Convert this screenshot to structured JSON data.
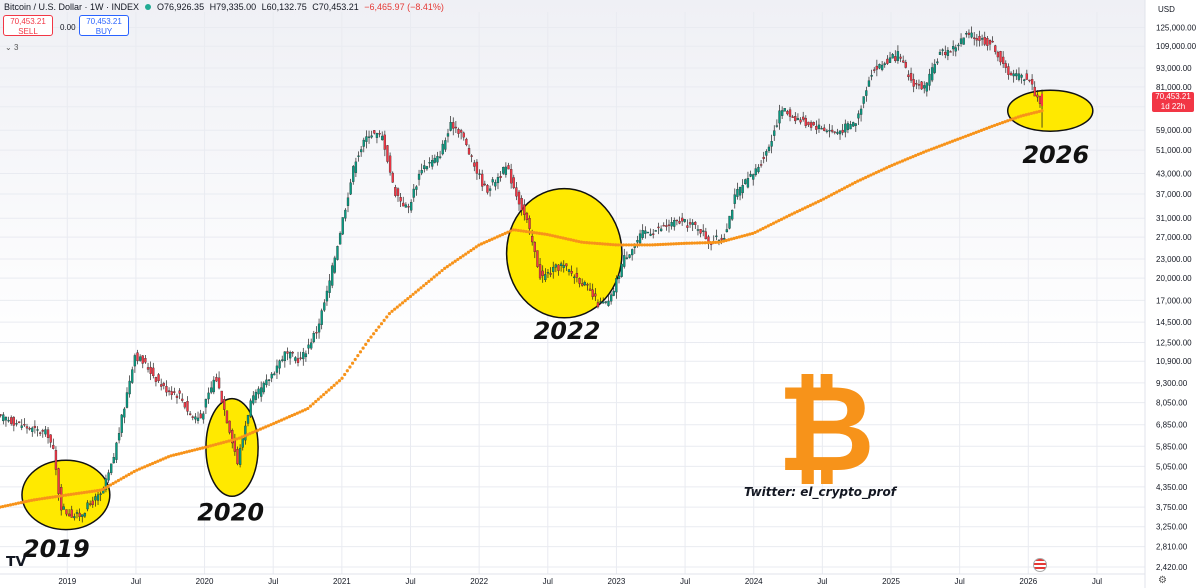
{
  "header": {
    "title": "Bitcoin / U.S. Dollar · 1W · INDEX",
    "open": "O76,926.35",
    "high": "H79,335.00",
    "low": "L60,132.75",
    "close": "C70,453.21",
    "change": "−6,465.97 (−8.41%)",
    "sell_price": "70,453.21",
    "sell_label": "SELL",
    "spread": "0.00",
    "buy_price": "70,453.21",
    "buy_label": "BUY",
    "indicator_count": "3"
  },
  "price_axis": {
    "currency": "USD",
    "current_price": "70,453.21",
    "countdown": "1d 22h"
  },
  "watermark": {
    "credit": "Twitter: el_crypto_prof",
    "logo_glyph": "₿",
    "logo_color": "#f7931a"
  },
  "colors": {
    "ma_line": "#f7931a",
    "highlight": "#ffe900",
    "up_candle": "#089981",
    "down_candle": "#f23645"
  },
  "chart_data": {
    "type": "candlestick",
    "scale": "log",
    "y_ticks": [
      125000,
      109000,
      93000,
      81000,
      70000,
      59000,
      51000,
      43000,
      37000,
      31000,
      27000,
      23000,
      20000,
      17000,
      14500,
      12500,
      10900,
      9300,
      8050,
      6850,
      5850,
      5050,
      4350,
      3750,
      3250,
      2810,
      2420
    ],
    "y_tick_labels": [
      "125,000.00",
      "109,000.00",
      "93,000.00",
      "81,000.00",
      "70,000.00",
      "59,000.00",
      "51,000.00",
      "43,000.00",
      "37,000.00",
      "31,000.00",
      "27,000.00",
      "23,000.00",
      "20,000.00",
      "17,000.00",
      "14,500.00",
      "12,500.00",
      "10,900.00",
      "9,300.00",
      "8,050.00",
      "6,850.00",
      "5,850.00",
      "5,050.00",
      "4,350.00",
      "3,750.00",
      "3,250.00",
      "2,810.00",
      "2,420.00"
    ],
    "ylim": [
      2300,
      140000
    ],
    "x_ticks": [
      {
        "t": 2018.5,
        "label": "Jul"
      },
      {
        "t": 2019.0,
        "label": "2019"
      },
      {
        "t": 2019.5,
        "label": "Jul"
      },
      {
        "t": 2020.0,
        "label": "2020"
      },
      {
        "t": 2020.5,
        "label": "Jul"
      },
      {
        "t": 2021.0,
        "label": "2021"
      },
      {
        "t": 2021.5,
        "label": "Jul"
      },
      {
        "t": 2022.0,
        "label": "2022"
      },
      {
        "t": 2022.5,
        "label": "Jul"
      },
      {
        "t": 2023.0,
        "label": "2023"
      },
      {
        "t": 2023.5,
        "label": "Jul"
      },
      {
        "t": 2024.0,
        "label": "2024"
      },
      {
        "t": 2024.5,
        "label": "Jul"
      },
      {
        "t": 2025.0,
        "label": "2025"
      },
      {
        "t": 2025.5,
        "label": "Jul"
      },
      {
        "t": 2026.0,
        "label": "2026"
      },
      {
        "t": 2026.5,
        "label": "Jul"
      }
    ],
    "xlim": [
      2018.51,
      2026.85
    ],
    "price_path": [
      [
        2018.55,
        7200
      ],
      [
        2018.75,
        6600
      ],
      [
        2018.86,
        6400
      ],
      [
        2018.9,
        5600
      ],
      [
        2018.95,
        3800
      ],
      [
        2019.0,
        3600
      ],
      [
        2019.08,
        3500
      ],
      [
        2019.18,
        3900
      ],
      [
        2019.25,
        4100
      ],
      [
        2019.33,
        5200
      ],
      [
        2019.42,
        8000
      ],
      [
        2019.49,
        11500
      ],
      [
        2019.58,
        10500
      ],
      [
        2019.7,
        9000
      ],
      [
        2019.82,
        8500
      ],
      [
        2019.9,
        7300
      ],
      [
        2019.97,
        7200
      ],
      [
        2020.08,
        9800
      ],
      [
        2020.2,
        6200
      ],
      [
        2020.24,
        5200
      ],
      [
        2020.33,
        8000
      ],
      [
        2020.45,
        9300
      ],
      [
        2020.58,
        11500
      ],
      [
        2020.7,
        11000
      ],
      [
        2020.82,
        13800
      ],
      [
        2020.9,
        18500
      ],
      [
        2021.0,
        30000
      ],
      [
        2021.1,
        48000
      ],
      [
        2021.2,
        58000
      ],
      [
        2021.3,
        56000
      ],
      [
        2021.38,
        38000
      ],
      [
        2021.48,
        33000
      ],
      [
        2021.58,
        45000
      ],
      [
        2021.7,
        48000
      ],
      [
        2021.8,
        62000
      ],
      [
        2021.87,
        58000
      ],
      [
        2021.95,
        47000
      ],
      [
        2022.05,
        38000
      ],
      [
        2022.2,
        45000
      ],
      [
        2022.35,
        30000
      ],
      [
        2022.45,
        20000
      ],
      [
        2022.6,
        22000
      ],
      [
        2022.75,
        19500
      ],
      [
        2022.87,
        16500
      ],
      [
        2022.95,
        16700
      ],
      [
        2023.05,
        23000
      ],
      [
        2023.2,
        28000
      ],
      [
        2023.3,
        28500
      ],
      [
        2023.45,
        30300
      ],
      [
        2023.6,
        29000
      ],
      [
        2023.68,
        26000
      ],
      [
        2023.78,
        27000
      ],
      [
        2023.87,
        37000
      ],
      [
        2024.0,
        43000
      ],
      [
        2024.1,
        51000
      ],
      [
        2024.2,
        69000
      ],
      [
        2024.35,
        63000
      ],
      [
        2024.5,
        60000
      ],
      [
        2024.6,
        58000
      ],
      [
        2024.75,
        63000
      ],
      [
        2024.85,
        90000
      ],
      [
        2024.96,
        97000
      ],
      [
        2025.05,
        102000
      ],
      [
        2025.15,
        84000
      ],
      [
        2025.25,
        80000
      ],
      [
        2025.35,
        103000
      ],
      [
        2025.45,
        107000
      ],
      [
        2025.55,
        118000
      ],
      [
        2025.65,
        115000
      ],
      [
        2025.75,
        110000
      ],
      [
        2025.82,
        93000
      ],
      [
        2025.9,
        88000
      ],
      [
        2026.0,
        87000
      ],
      [
        2026.05,
        77000
      ],
      [
        2026.1,
        70453
      ]
    ],
    "ma_path": [
      [
        2018.51,
        3750
      ],
      [
        2018.75,
        3950
      ],
      [
        2019.0,
        4100
      ],
      [
        2019.25,
        4250
      ],
      [
        2019.5,
        4900
      ],
      [
        2019.75,
        5450
      ],
      [
        2020.0,
        5800
      ],
      [
        2020.25,
        6200
      ],
      [
        2020.5,
        6900
      ],
      [
        2020.75,
        7700
      ],
      [
        2021.0,
        9600
      ],
      [
        2021.2,
        12800
      ],
      [
        2021.35,
        15500
      ],
      [
        2021.5,
        17500
      ],
      [
        2021.75,
        21500
      ],
      [
        2022.0,
        25500
      ],
      [
        2022.25,
        28500
      ],
      [
        2022.5,
        27500
      ],
      [
        2022.75,
        26000
      ],
      [
        2023.0,
        25500
      ],
      [
        2023.25,
        25500
      ],
      [
        2023.5,
        25800
      ],
      [
        2023.75,
        26000
      ],
      [
        2024.0,
        27800
      ],
      [
        2024.25,
        31500
      ],
      [
        2024.5,
        35500
      ],
      [
        2024.75,
        40500
      ],
      [
        2025.0,
        45500
      ],
      [
        2025.25,
        50500
      ],
      [
        2025.5,
        55500
      ],
      [
        2025.75,
        61000
      ],
      [
        2025.95,
        65500
      ],
      [
        2026.1,
        68000
      ]
    ],
    "annotations": [
      {
        "label": "2019",
        "t": 2018.99,
        "price": 4100,
        "rx_years": 0.32,
        "ry_decades": 0.11,
        "label_t": 2018.92,
        "label_price": 2600
      },
      {
        "label": "2020",
        "t": 2020.2,
        "price": 5800,
        "rx_years": 0.19,
        "ry_decades": 0.155,
        "label_t": 2020.19,
        "label_price": 3400
      },
      {
        "label": "2022",
        "t": 2022.62,
        "price": 24000,
        "rx_years": 0.42,
        "ry_decades": 0.205,
        "label_t": 2022.64,
        "label_price": 12800
      },
      {
        "label": "2026",
        "t": 2026.16,
        "price": 68000,
        "rx_years": 0.31,
        "ry_decades": 0.065,
        "label_t": 2026.2,
        "label_price": 46500
      }
    ]
  }
}
